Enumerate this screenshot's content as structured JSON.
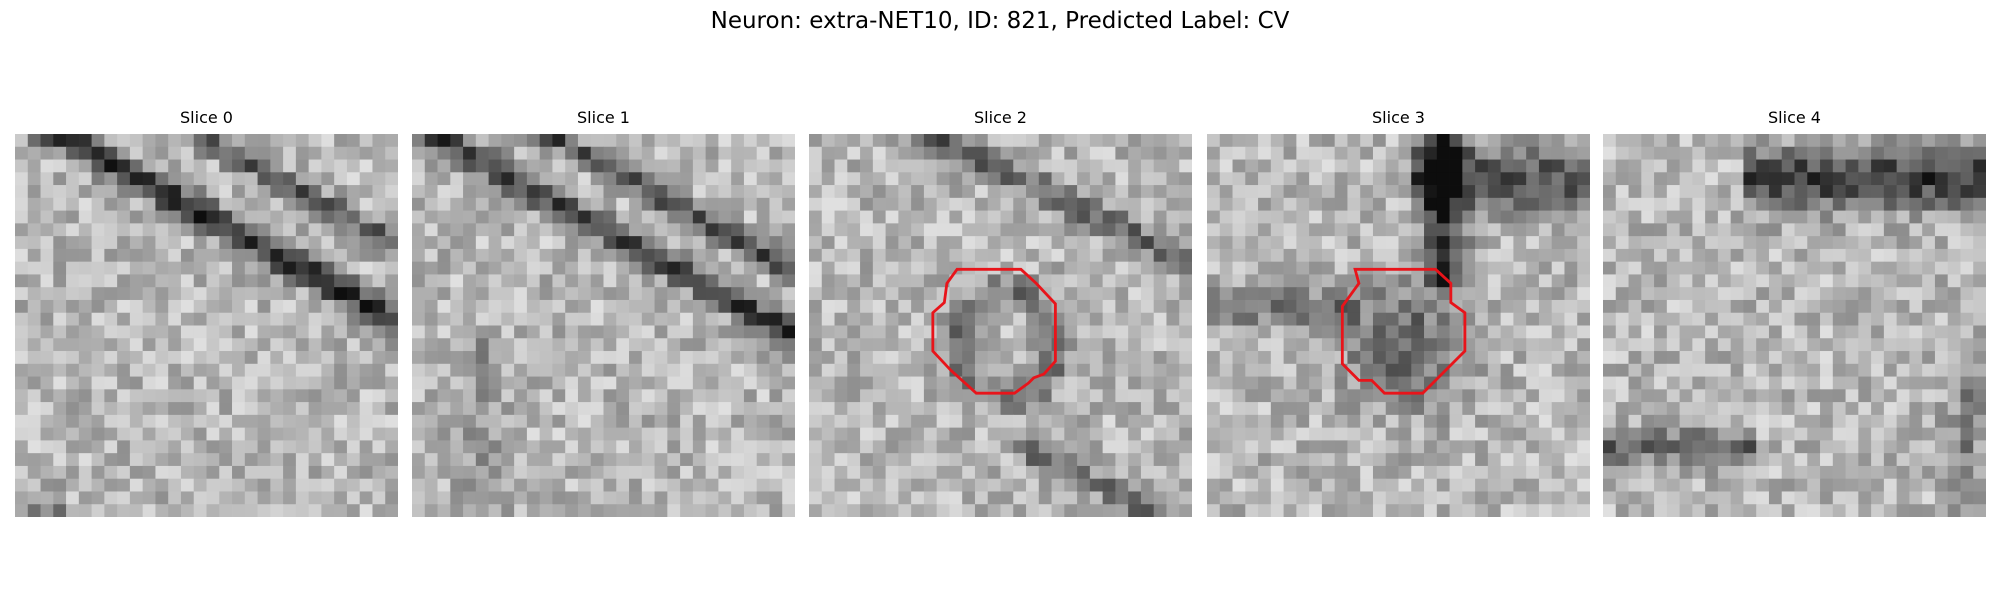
{
  "title": "Neuron: extra-NET10, ID: 821, Predicted Label: CV",
  "panels": [
    {
      "title": "Slice 0"
    },
    {
      "title": "Slice 1"
    },
    {
      "title": "Slice 2"
    },
    {
      "title": "Slice 3"
    },
    {
      "title": "Slice 4"
    }
  ]
}
